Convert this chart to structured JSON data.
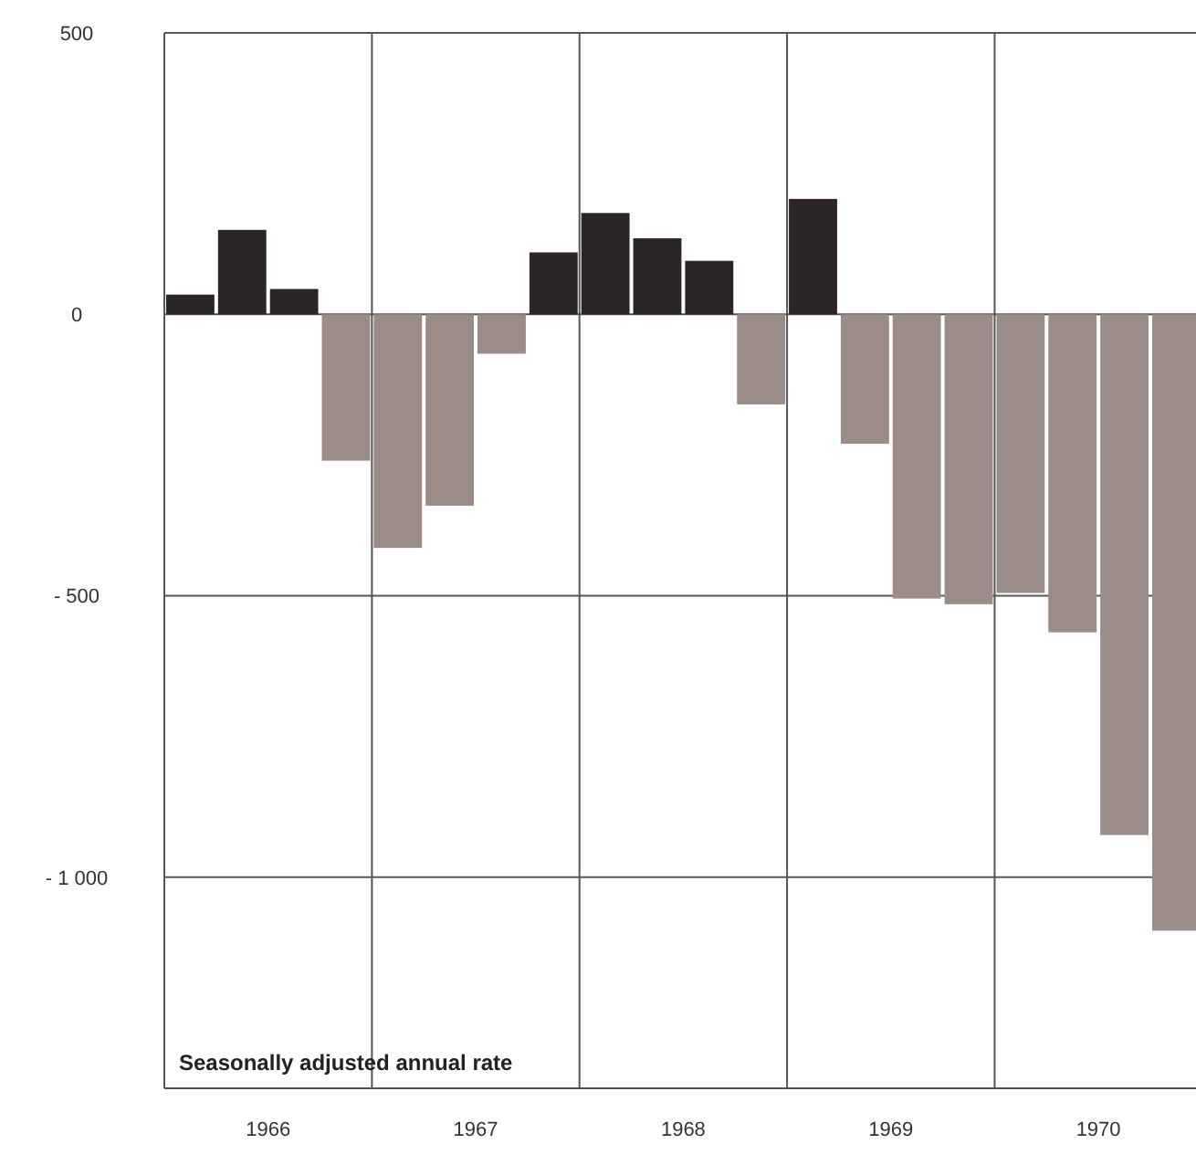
{
  "chart_data": {
    "type": "bar",
    "x": [
      1966.125,
      1966.375,
      1966.625,
      1966.875,
      1967.125,
      1967.375,
      1967.625,
      1967.875,
      1968.125,
      1968.375,
      1968.625,
      1968.875,
      1969.125,
      1969.375,
      1969.625,
      1969.875,
      1970.125,
      1970.375,
      1970.625,
      1970.875
    ],
    "values": [
      35,
      150,
      45,
      -260,
      -415,
      -340,
      -70,
      110,
      180,
      135,
      95,
      -160,
      205,
      -230,
      -505,
      -515,
      -495,
      -565,
      -925,
      -1095
    ],
    "colors": [
      "#2b2528",
      "#2b2528",
      "#2b2528",
      "#9c8c87",
      "#9c8c87",
      "#9c8c87",
      "#9c8c87",
      "#2b2528",
      "#2b2528",
      "#2b2528",
      "#2b2528",
      "#9c8c87",
      "#2b2528",
      "#9c8c87",
      "#9c8c87",
      "#9c8c87",
      "#9c8c87",
      "#9c8c87",
      "#9c8c87",
      "#9c8c87"
    ],
    "xlim": [
      1966,
      1970.97
    ],
    "xticks": [
      {
        "value": 1966.5,
        "label": "1966"
      },
      {
        "value": 1967,
        "label": null
      },
      {
        "value": 1967.5,
        "label": "1967"
      },
      {
        "value": 1968,
        "label": null
      },
      {
        "value": 1968.5,
        "label": "1968"
      },
      {
        "value": 1969,
        "label": null
      },
      {
        "value": 1969.5,
        "label": "1969"
      },
      {
        "value": 1970,
        "label": null
      },
      {
        "value": 1970.5,
        "label": "1970"
      }
    ],
    "ylim": [
      -1375,
      500
    ],
    "yticks": [
      500,
      0,
      {
        "value": -500,
        "label": "- 500"
      },
      {
        "value": -1000,
        "label": "- 1 000"
      }
    ],
    "grid": true,
    "annotations": [
      "Seasonally adjusted annual rate"
    ]
  }
}
